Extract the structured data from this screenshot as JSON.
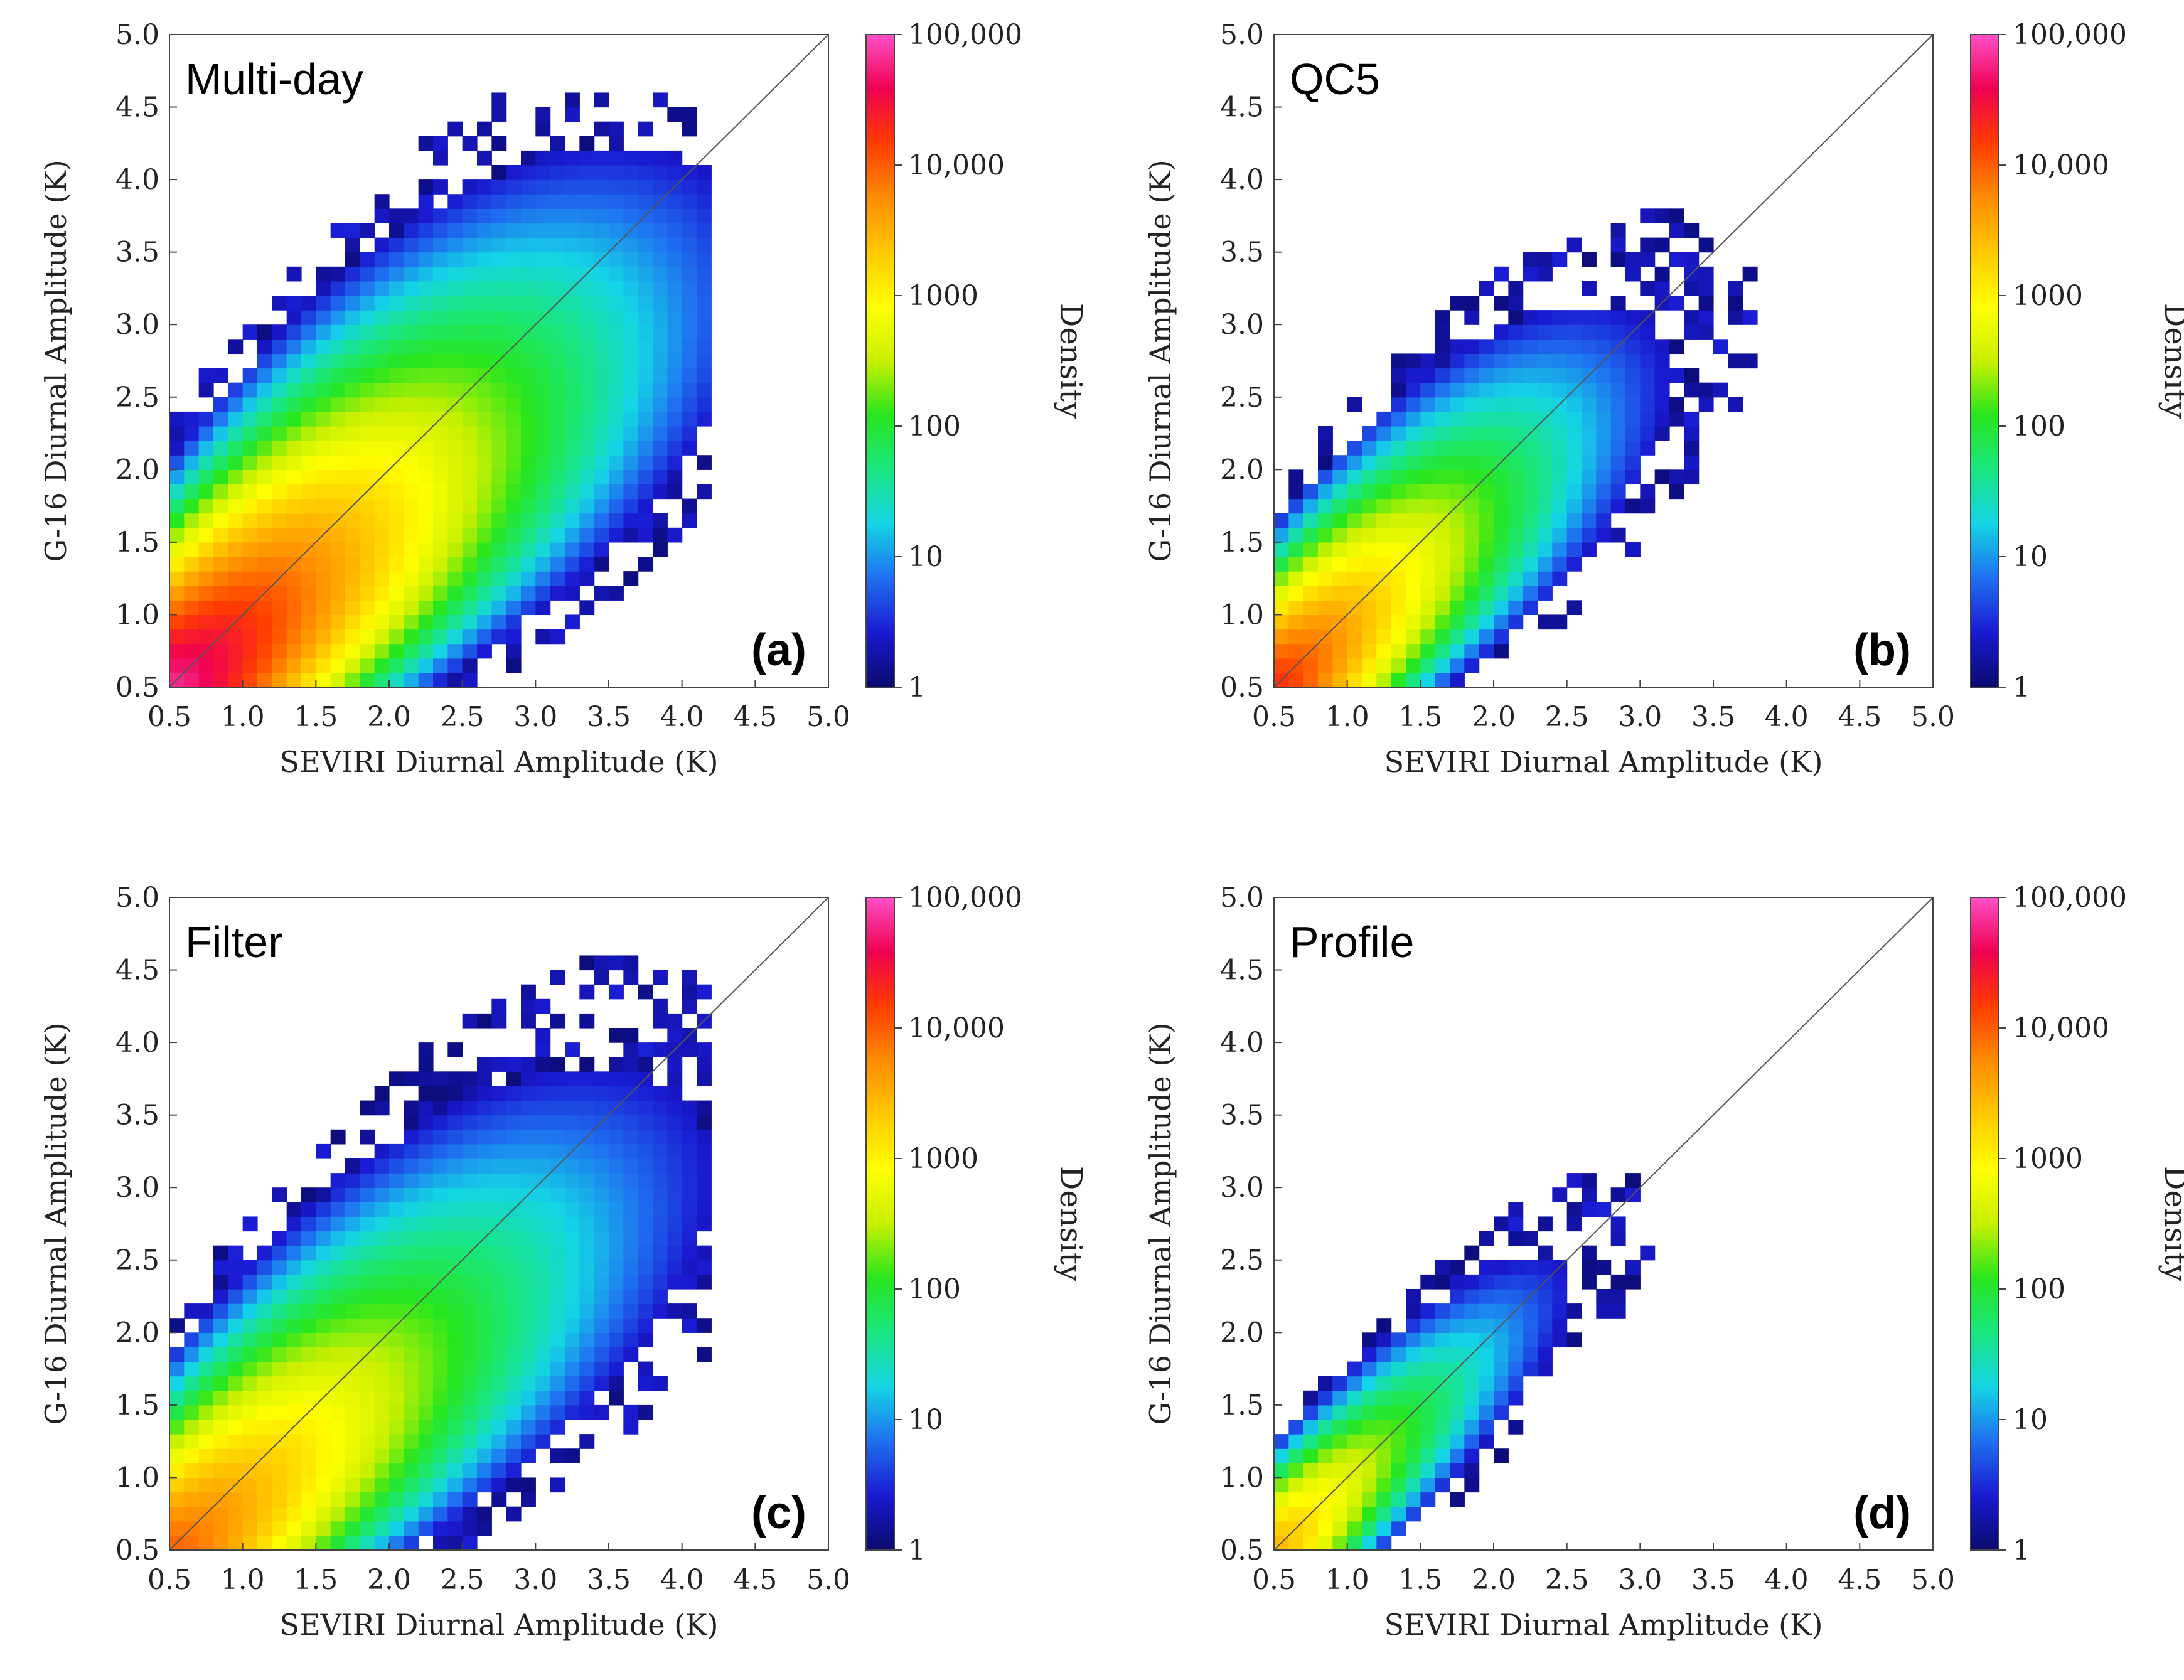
{
  "colors": {
    "colormap": [
      "#0a0a6e",
      "#1a1ad2",
      "#1f6ff0",
      "#14d4e6",
      "#19e680",
      "#28e61e",
      "#c8f000",
      "#ffff00",
      "#ffc800",
      "#ff8c00",
      "#ff3c00",
      "#f00050",
      "#ff50c8"
    ]
  },
  "chart_data": [
    {
      "type": "heatmap",
      "panel": "(a)",
      "title": "Multi-day",
      "xlabel": "SEVIRI Diurnal Amplitude (K)",
      "ylabel": "G-16 Diurnal Amplitude (K)",
      "xlim": [
        0.5,
        5.0
      ],
      "ylim": [
        0.5,
        5.0
      ],
      "xticks": [
        "0.5",
        "1.0",
        "1.5",
        "2.0",
        "2.5",
        "3.0",
        "3.5",
        "4.0",
        "4.5",
        "5.0"
      ],
      "yticks": [
        "0.5",
        "1.0",
        "1.5",
        "2.0",
        "2.5",
        "3.0",
        "3.5",
        "4.0",
        "4.5",
        "5.0"
      ],
      "bin_width_K": 0.1,
      "one_to_one_line": true,
      "colorbar": {
        "label": "Density",
        "scale": "log",
        "ticks": [
          "1",
          "10",
          "100",
          "1000",
          "10,000",
          "100,000"
        ],
        "range": [
          1,
          100000
        ]
      },
      "density_model": {
        "ridge_ratio": 0.93,
        "ridge_spread_low": 0.55,
        "ridge_spread_gain": 0.42,
        "peak_log10_density": 4.85,
        "decay": 0.62,
        "x_extent_K": 4.2,
        "y_extent_K": 4.6
      }
    },
    {
      "type": "heatmap",
      "panel": "(b)",
      "title": "QC5",
      "xlabel": "SEVIRI Diurnal Amplitude (K)",
      "ylabel": "G-16 Diurnal Amplitude (K)",
      "xlim": [
        0.5,
        5.0
      ],
      "ylim": [
        0.5,
        5.0
      ],
      "xticks": [
        "0.5",
        "1.0",
        "1.5",
        "2.0",
        "2.5",
        "3.0",
        "3.5",
        "4.0",
        "4.5",
        "5.0"
      ],
      "yticks": [
        "0.5",
        "1.0",
        "1.5",
        "2.0",
        "2.5",
        "3.0",
        "3.5",
        "4.0",
        "4.5",
        "5.0"
      ],
      "bin_width_K": 0.1,
      "one_to_one_line": true,
      "colorbar": {
        "label": "Density",
        "scale": "log",
        "ticks": [
          "1",
          "10",
          "100",
          "1000",
          "10,000",
          "100,000"
        ],
        "range": [
          1,
          100000
        ]
      },
      "density_model": {
        "ridge_ratio": 0.98,
        "ridge_spread_low": 0.45,
        "ridge_spread_gain": 0.36,
        "peak_log10_density": 4.3,
        "decay": 0.78,
        "x_extent_K": 4.3,
        "y_extent_K": 4.8
      }
    },
    {
      "type": "heatmap",
      "panel": "(c)",
      "title": "Filter",
      "xlabel": "SEVIRI Diurnal Amplitude (K)",
      "ylabel": "G-16 Diurnal Amplitude (K)",
      "xlim": [
        0.5,
        5.0
      ],
      "ylim": [
        0.5,
        5.0
      ],
      "xticks": [
        "0.5",
        "1.0",
        "1.5",
        "2.0",
        "2.5",
        "3.0",
        "3.5",
        "4.0",
        "4.5",
        "5.0"
      ],
      "yticks": [
        "0.5",
        "1.0",
        "1.5",
        "2.0",
        "2.5",
        "3.0",
        "3.5",
        "4.0",
        "4.5",
        "5.0"
      ],
      "bin_width_K": 0.1,
      "one_to_one_line": true,
      "colorbar": {
        "label": "Density",
        "scale": "log",
        "ticks": [
          "1",
          "10",
          "100",
          "1000",
          "10,000",
          "100,000"
        ],
        "range": [
          1,
          100000
        ]
      },
      "density_model": {
        "ridge_ratio": 0.9,
        "ridge_spread_low": 0.55,
        "ridge_spread_gain": 0.42,
        "peak_log10_density": 4.0,
        "decay": 0.55,
        "x_extent_K": 4.2,
        "y_extent_K": 4.55
      }
    },
    {
      "type": "heatmap",
      "panel": "(d)",
      "title": "Profile",
      "xlabel": "SEVIRI Diurnal Amplitude (K)",
      "ylabel": "G-16 Diurnal Amplitude (K)",
      "xlim": [
        0.5,
        5.0
      ],
      "ylim": [
        0.5,
        5.0
      ],
      "xticks": [
        "0.5",
        "1.0",
        "1.5",
        "2.0",
        "2.5",
        "3.0",
        "3.5",
        "4.0",
        "4.5",
        "5.0"
      ],
      "yticks": [
        "0.5",
        "1.0",
        "1.5",
        "2.0",
        "2.5",
        "3.0",
        "3.5",
        "4.0",
        "4.5",
        "5.0"
      ],
      "bin_width_K": 0.1,
      "one_to_one_line": true,
      "colorbar": {
        "label": "Density",
        "scale": "log",
        "ticks": [
          "1",
          "10",
          "100",
          "1000",
          "10,000",
          "100,000"
        ],
        "range": [
          1,
          100000
        ]
      },
      "density_model": {
        "ridge_ratio": 1.0,
        "ridge_spread_low": 0.4,
        "ridge_spread_gain": 0.22,
        "peak_log10_density": 3.5,
        "decay": 0.8,
        "x_extent_K": 4.1,
        "y_extent_K": 4.6
      }
    }
  ]
}
